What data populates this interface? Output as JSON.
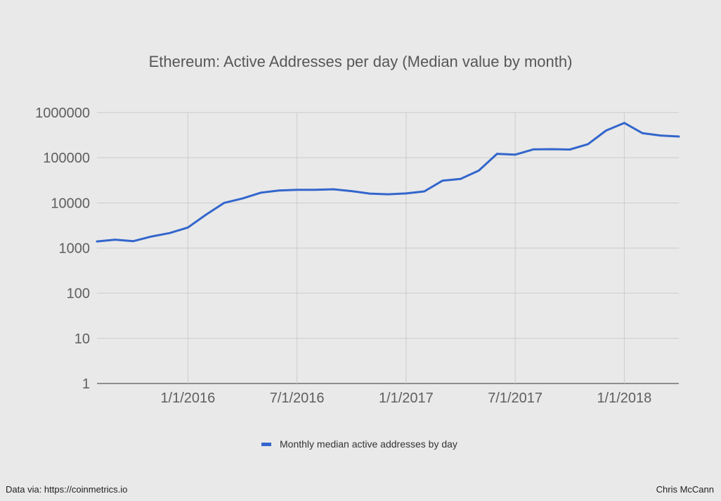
{
  "colors": {
    "background": "#e9e9e9",
    "series": "#3366cc",
    "grid": "#cccccc",
    "text": "#5f5f5f",
    "title": "#575757"
  },
  "footer": {
    "source": "Data via: https://coinmetrics.io",
    "author": "Chris McCann"
  },
  "chart_data": {
    "type": "line",
    "title": "Ethereum: Active Addresses per day (Median value by month)",
    "xlabel": "",
    "ylabel": "",
    "yscale": "log10",
    "ylim": [
      1,
      1000000
    ],
    "xlim": [
      "2015-08-01",
      "2018-04-01"
    ],
    "grid": true,
    "legend_position": "bottom",
    "y_ticks": [
      {
        "value": 1,
        "label": "1"
      },
      {
        "value": 10,
        "label": "10"
      },
      {
        "value": 100,
        "label": "100"
      },
      {
        "value": 1000,
        "label": "1000"
      },
      {
        "value": 10000,
        "label": "10000"
      },
      {
        "value": 100000,
        "label": "100000"
      },
      {
        "value": 1000000,
        "label": "1000000"
      }
    ],
    "x_ticks": [
      {
        "value": "2016-01-01",
        "label": "1/1/2016"
      },
      {
        "value": "2016-07-01",
        "label": "7/1/2016"
      },
      {
        "value": "2017-01-01",
        "label": "1/1/2017"
      },
      {
        "value": "2017-07-01",
        "label": "7/1/2017"
      },
      {
        "value": "2018-01-01",
        "label": "1/1/2018"
      }
    ],
    "series": [
      {
        "name": "Monthly median active addresses by day",
        "points": [
          {
            "x": "2015-08-01",
            "y": 1400
          },
          {
            "x": "2015-09-01",
            "y": 1530
          },
          {
            "x": "2015-10-01",
            "y": 1420
          },
          {
            "x": "2015-11-01",
            "y": 1800
          },
          {
            "x": "2015-12-01",
            "y": 2150
          },
          {
            "x": "2016-01-01",
            "y": 2850
          },
          {
            "x": "2016-02-01",
            "y": 5500
          },
          {
            "x": "2016-03-01",
            "y": 10000
          },
          {
            "x": "2016-04-01",
            "y": 12500
          },
          {
            "x": "2016-05-01",
            "y": 16800
          },
          {
            "x": "2016-06-01",
            "y": 18800
          },
          {
            "x": "2016-07-01",
            "y": 19500
          },
          {
            "x": "2016-08-01",
            "y": 19500
          },
          {
            "x": "2016-09-01",
            "y": 20000
          },
          {
            "x": "2016-10-01",
            "y": 18200
          },
          {
            "x": "2016-11-01",
            "y": 16100
          },
          {
            "x": "2016-12-01",
            "y": 15500
          },
          {
            "x": "2017-01-01",
            "y": 16200
          },
          {
            "x": "2017-02-01",
            "y": 18000
          },
          {
            "x": "2017-03-01",
            "y": 31000
          },
          {
            "x": "2017-04-01",
            "y": 34000
          },
          {
            "x": "2017-05-01",
            "y": 52000
          },
          {
            "x": "2017-06-01",
            "y": 122000
          },
          {
            "x": "2017-07-01",
            "y": 117000
          },
          {
            "x": "2017-08-01",
            "y": 153000
          },
          {
            "x": "2017-09-01",
            "y": 155000
          },
          {
            "x": "2017-10-01",
            "y": 152000
          },
          {
            "x": "2017-11-01",
            "y": 200000
          },
          {
            "x": "2017-12-01",
            "y": 400000
          },
          {
            "x": "2018-01-01",
            "y": 590000
          },
          {
            "x": "2018-02-01",
            "y": 350000
          },
          {
            "x": "2018-03-01",
            "y": 310000
          },
          {
            "x": "2018-04-01",
            "y": 295000
          }
        ]
      }
    ]
  }
}
